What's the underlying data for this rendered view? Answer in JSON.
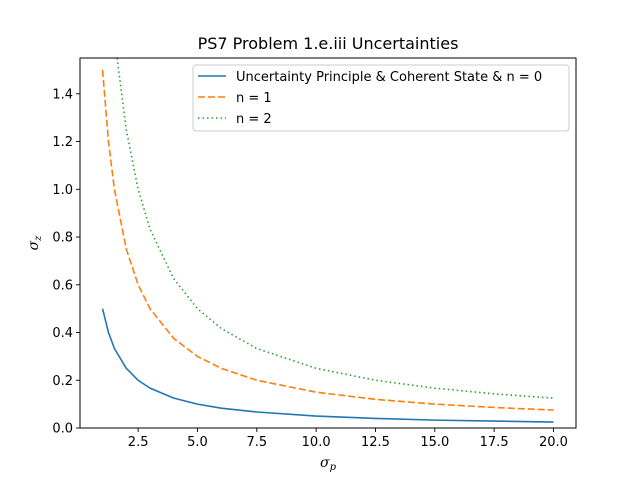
{
  "chart_data": {
    "type": "line",
    "title": "PS7 Problem 1.e.iii Uncertainties",
    "xlabel": {
      "symbol": "σ",
      "subscript": "p"
    },
    "ylabel": {
      "symbol": "σ",
      "subscript": "z"
    },
    "xlim": [
      0.05,
      20.95
    ],
    "ylim": [
      0,
      1.55
    ],
    "xticks": [
      2.5,
      5.0,
      7.5,
      10.0,
      12.5,
      15.0,
      17.5,
      20.0
    ],
    "xtick_labels": [
      "2.5",
      "5.0",
      "7.5",
      "10.0",
      "12.5",
      "15.0",
      "17.5",
      "20.0"
    ],
    "yticks": [
      0.0,
      0.2,
      0.4,
      0.6,
      0.8,
      1.0,
      1.2,
      1.4
    ],
    "ytick_labels": [
      "0.0",
      "0.2",
      "0.4",
      "0.6",
      "0.8",
      "1.0",
      "1.2",
      "1.4"
    ],
    "grid": false,
    "legend_position": "top-right",
    "series": [
      {
        "name": "Uncertainty Principle & Coherent State & n = 0",
        "color": "#1f77b4",
        "style": "solid",
        "x": [
          1,
          1.25,
          1.5,
          2,
          2.5,
          3,
          4,
          5,
          6,
          7.5,
          10,
          12.5,
          15,
          17.5,
          20
        ],
        "y": [
          0.5,
          0.4,
          0.333,
          0.25,
          0.2,
          0.167,
          0.125,
          0.1,
          0.083,
          0.067,
          0.05,
          0.04,
          0.033,
          0.029,
          0.025
        ]
      },
      {
        "name": "n = 1",
        "color": "#ff7f0e",
        "style": "dashed",
        "x": [
          1,
          1.25,
          1.5,
          2,
          2.5,
          3,
          4,
          5,
          6,
          7.5,
          10,
          12.5,
          15,
          17.5,
          20
        ],
        "y": [
          1.5,
          1.2,
          1.0,
          0.75,
          0.6,
          0.5,
          0.375,
          0.3,
          0.25,
          0.2,
          0.15,
          0.12,
          0.1,
          0.086,
          0.075
        ]
      },
      {
        "name": "n = 2",
        "color": "#2ca02c",
        "style": "dotted",
        "x": [
          1.613,
          2,
          2.5,
          3,
          4,
          5,
          6,
          7.5,
          10,
          12.5,
          15,
          17.5,
          20
        ],
        "y": [
          1.55,
          1.25,
          1.0,
          0.833,
          0.625,
          0.5,
          0.417,
          0.333,
          0.25,
          0.2,
          0.167,
          0.143,
          0.125
        ]
      }
    ]
  }
}
